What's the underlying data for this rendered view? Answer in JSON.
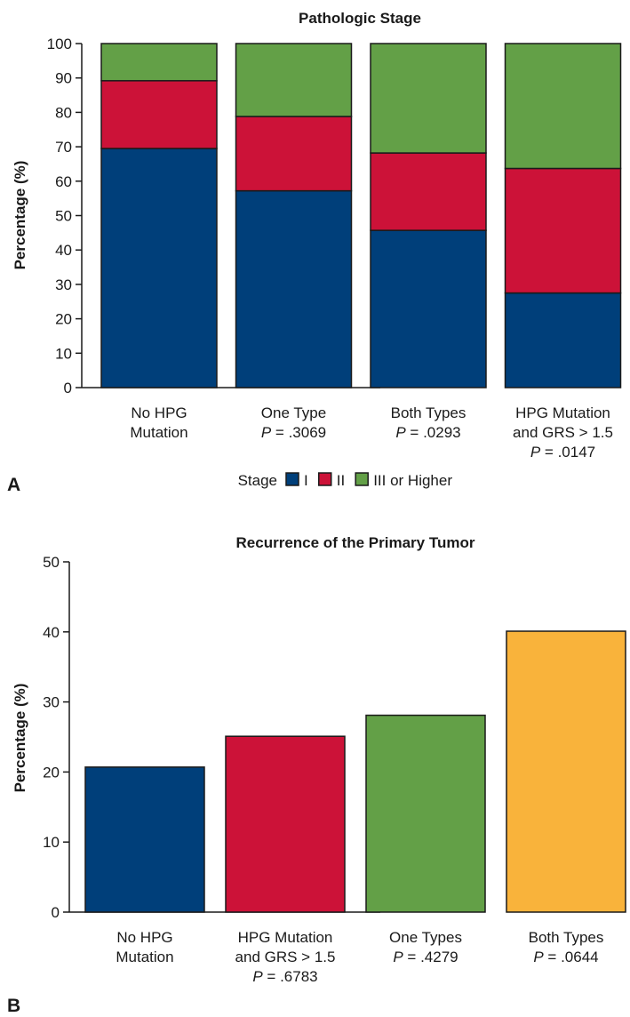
{
  "chart_data": [
    {
      "panel": "A",
      "type": "bar",
      "stacked": true,
      "title": "Pathologic Stage",
      "ylabel": "Percentage (%)",
      "ylim": [
        0,
        100
      ],
      "yticks": [
        0,
        10,
        20,
        30,
        40,
        50,
        60,
        70,
        80,
        90,
        100
      ],
      "categories": [
        {
          "lines": [
            {
              "text": "No HPG"
            },
            {
              "text": "Mutation"
            }
          ]
        },
        {
          "lines": [
            {
              "text": "One Type"
            },
            {
              "p": "P",
              "text": " = .3069"
            }
          ]
        },
        {
          "lines": [
            {
              "text": "Both Types"
            },
            {
              "p": "P",
              "text": " = .0293"
            }
          ]
        },
        {
          "lines": [
            {
              "text": "HPG Mutation"
            },
            {
              "text": "and GRS > 1.5"
            },
            {
              "p": "P",
              "text": " = .0147"
            }
          ]
        }
      ],
      "series": [
        {
          "name": "I",
          "color": "#003f7a",
          "values": [
            69.5,
            57.2,
            45.7,
            27.5
          ]
        },
        {
          "name": "II",
          "color": "#cc1238",
          "values": [
            19.7,
            21.6,
            22.5,
            36.2
          ]
        },
        {
          "name": "III or Higher",
          "color": "#63a047",
          "values": [
            10.8,
            21.2,
            31.8,
            36.3
          ]
        }
      ],
      "legend": {
        "title": "Stage",
        "placement": "bottom"
      }
    },
    {
      "panel": "B",
      "type": "bar",
      "title": "Recurrence of the Primary Tumor",
      "ylabel": "Percentage (%)",
      "ylim": [
        0,
        50
      ],
      "yticks": [
        0,
        10,
        20,
        30,
        40,
        50
      ],
      "categories": [
        {
          "lines": [
            {
              "text": "No HPG"
            },
            {
              "text": "Mutation"
            }
          ]
        },
        {
          "lines": [
            {
              "text": "HPG Mutation"
            },
            {
              "text": "and GRS > 1.5"
            },
            {
              "p": "P",
              "text": " = .6783"
            }
          ]
        },
        {
          "lines": [
            {
              "text": "One Types"
            },
            {
              "p": "P",
              "text": " = .4279"
            }
          ]
        },
        {
          "lines": [
            {
              "text": "Both Types"
            },
            {
              "p": "P",
              "text": " = .0644"
            }
          ]
        }
      ],
      "values": [
        20.7,
        25.1,
        28.1,
        40.1
      ],
      "colors": [
        "#003f7a",
        "#cc1238",
        "#63a047",
        "#f9b33b"
      ]
    }
  ]
}
